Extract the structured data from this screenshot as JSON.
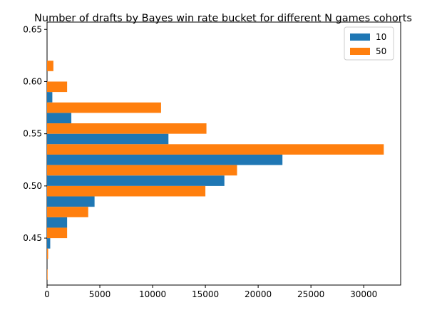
{
  "chart_data": {
    "type": "bar",
    "orientation": "horizontal",
    "title": "Number of drafts by Bayes win rate bucket for different N games cohorts",
    "xlabel": "",
    "ylabel": "",
    "xlim": [
      0,
      33500
    ],
    "ylim": [
      0.405,
      0.657
    ],
    "xticks": [
      0,
      5000,
      10000,
      15000,
      20000,
      25000,
      30000
    ],
    "yticks": [
      0.45,
      0.5,
      0.55,
      0.6,
      0.65
    ],
    "xtick_labels": [
      "0",
      "5000",
      "10000",
      "15000",
      "20000",
      "25000",
      "30000"
    ],
    "ytick_labels": [
      "0.45",
      "0.50",
      "0.55",
      "0.60",
      "0.65"
    ],
    "bin_width": 0.02,
    "bar_height": 0.01,
    "bins": [
      0.42,
      0.44,
      0.46,
      0.48,
      0.5,
      0.52,
      0.54,
      0.56,
      0.58,
      0.6,
      0.62
    ],
    "legend_position": "upper-right",
    "grid": false,
    "series": [
      {
        "name": "10",
        "color": "#1f77b4",
        "values": [
          0,
          300,
          1900,
          4500,
          16800,
          22300,
          11500,
          2300,
          500,
          0,
          0
        ]
      },
      {
        "name": "50",
        "color": "#ff7f0e",
        "values": [
          50,
          100,
          1900,
          3900,
          15000,
          18000,
          31900,
          15100,
          10800,
          1900,
          600
        ]
      }
    ]
  }
}
